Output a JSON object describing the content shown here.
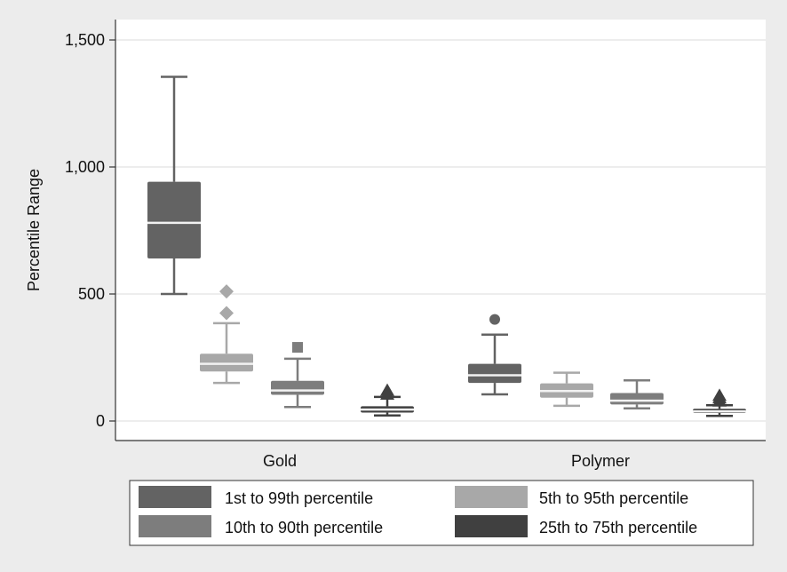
{
  "chart_data": {
    "type": "box",
    "ylabel": "Percentile Range",
    "ylim": [
      -75,
      1500
    ],
    "yticks": [
      {
        "value": 0,
        "label": "0"
      },
      {
        "value": 500,
        "label": "500"
      },
      {
        "value": 1000,
        "label": "1,000"
      },
      {
        "value": 1500,
        "label": "1,500"
      }
    ],
    "grid": true,
    "legend_position": "bottom",
    "categories": [
      "Gold",
      "Polymer"
    ],
    "series": [
      {
        "name": "1st to 99th percentile",
        "color": "#636363",
        "outlier_marker": "circle",
        "boxes": [
          {
            "category": "Gold",
            "whisker_low": 500,
            "q1": 640,
            "median": 780,
            "q3": 942,
            "whisker_high": 1355,
            "outliers": []
          },
          {
            "category": "Polymer",
            "whisker_low": 105,
            "q1": 150,
            "median": 180,
            "q3": 225,
            "whisker_high": 340,
            "outliers": [
              400
            ]
          }
        ]
      },
      {
        "name": "5th to 95th percentile",
        "color": "#a8a8a8",
        "outlier_marker": "diamond",
        "boxes": [
          {
            "category": "Gold",
            "whisker_low": 150,
            "q1": 195,
            "median": 225,
            "q3": 265,
            "whisker_high": 385,
            "outliers": [
              425,
              510
            ]
          },
          {
            "category": "Polymer",
            "whisker_low": 60,
            "q1": 92,
            "median": 118,
            "q3": 148,
            "whisker_high": 190,
            "outliers": []
          }
        ]
      },
      {
        "name": "10th to 90th percentile",
        "color": "#7d7d7d",
        "outlier_marker": "square",
        "boxes": [
          {
            "category": "Gold",
            "whisker_low": 55,
            "q1": 103,
            "median": 120,
            "q3": 158,
            "whisker_high": 245,
            "outliers": [
              290
            ]
          },
          {
            "category": "Polymer",
            "whisker_low": 50,
            "q1": 65,
            "median": 80,
            "q3": 110,
            "whisker_high": 160,
            "outliers": []
          }
        ]
      },
      {
        "name": "25th to 75th percentile",
        "color": "#404040",
        "outlier_marker": "triangle",
        "boxes": [
          {
            "category": "Gold",
            "whisker_low": 22,
            "q1": 33,
            "median": 45,
            "q3": 58,
            "whisker_high": 95,
            "outliers": [
              105,
              120
            ]
          },
          {
            "category": "Polymer",
            "whisker_low": 20,
            "q1": 32,
            "median": 38,
            "q3": 48,
            "whisker_high": 62,
            "outliers": [
              78,
              90,
              100
            ]
          }
        ]
      }
    ],
    "legend": [
      "1st to 99th percentile",
      "5th to 95th percentile",
      "10th to 90th percentile",
      "25th to 75th percentile"
    ]
  }
}
